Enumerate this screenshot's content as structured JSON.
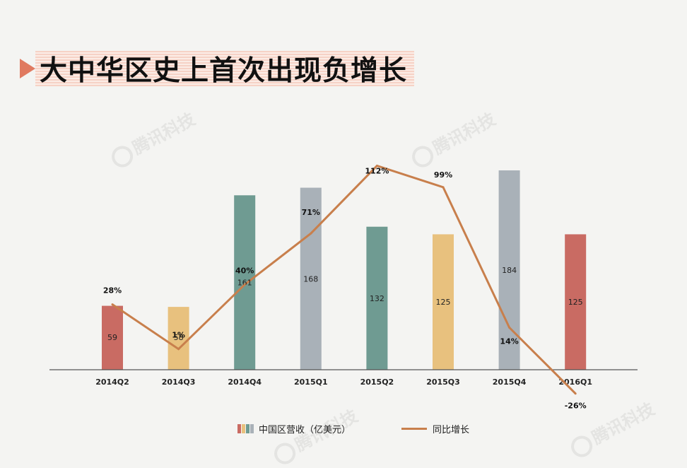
{
  "title": "大中华区史上首次出现负增长",
  "watermark_text": "腾讯科技",
  "legend": {
    "bars": "中国区营收（亿美元）",
    "line": "同比增长"
  },
  "colors": {
    "bar_palette": [
      "#c96b63",
      "#e8c17e",
      "#6f9b92",
      "#a9b1b8"
    ],
    "line": "#c87f4c",
    "axis": "#555555"
  },
  "chart_data": {
    "type": "bar",
    "categories": [
      "2014Q2",
      "2014Q3",
      "2014Q4",
      "2015Q1",
      "2015Q2",
      "2015Q3",
      "2015Q4",
      "2016Q1"
    ],
    "series": [
      {
        "name": "中国区营收（亿美元）",
        "type": "bar",
        "values": [
          59,
          58,
          161,
          168,
          132,
          125,
          184,
          125
        ],
        "labels": [
          "59",
          "58",
          "161",
          "168",
          "132",
          "125",
          "184",
          "125"
        ]
      },
      {
        "name": "同比增长",
        "type": "line",
        "values": [
          28,
          1,
          40,
          71,
          112,
          99,
          14,
          -26
        ],
        "labels": [
          "28%",
          "1%",
          "40%",
          "71%",
          "112%",
          "99%",
          "14%",
          "-26%"
        ]
      }
    ]
  }
}
